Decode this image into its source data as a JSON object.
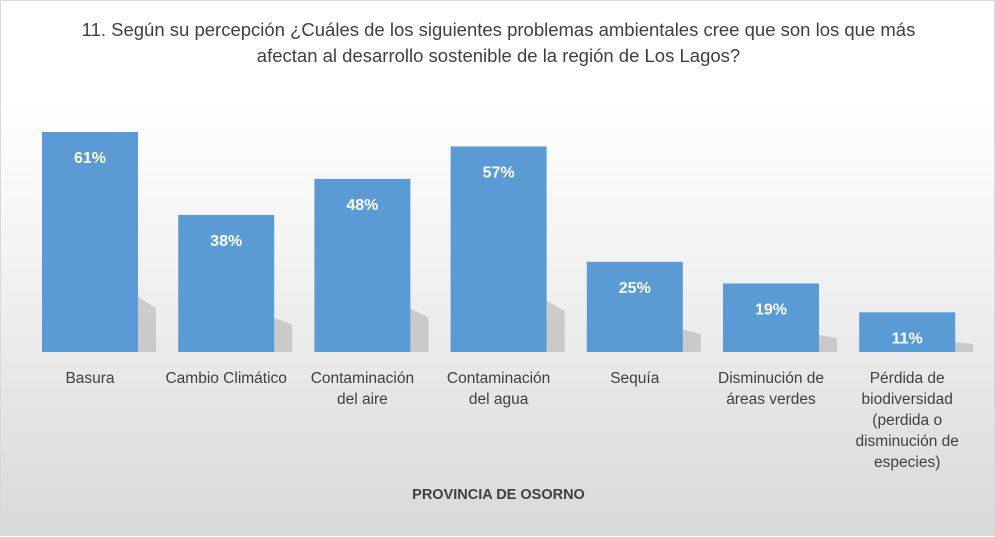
{
  "chart_data": {
    "type": "bar",
    "title": "11. Según su percepción ¿Cuáles de los siguientes problemas ambientales cree que son los que más afectan al desarrollo sostenible de la región de Los Lagos?",
    "xlabel": "PROVINCIA DE  OSORNO",
    "ylabel": "",
    "categories": [
      "Basura",
      "Cambio Climático",
      "Contaminación del aire",
      "Contaminación del agua",
      "Sequía",
      "Disminución de áreas verdes",
      "Pérdida de biodiversidad (perdida o disminución de especies)"
    ],
    "category_lines": [
      [
        "Basura"
      ],
      [
        "Cambio Climático"
      ],
      [
        "Contaminación",
        "del aire"
      ],
      [
        "Contaminación",
        "del agua"
      ],
      [
        "Sequía"
      ],
      [
        "Disminución de",
        "áreas verdes"
      ],
      [
        "Pérdida de",
        "biodiversidad",
        "(perdida o",
        "disminución de",
        "especies)"
      ]
    ],
    "values": [
      61,
      38,
      48,
      57,
      25,
      19,
      11
    ],
    "data_labels": [
      "61%",
      "38%",
      "48%",
      "57%",
      "25%",
      "19%",
      "11%"
    ],
    "unit": "%",
    "ylim": [
      0,
      61
    ],
    "grid": false,
    "legend": "none",
    "colors": {
      "bar": "#5b9bd5",
      "label": "#ffffff",
      "text": "#404040"
    }
  }
}
